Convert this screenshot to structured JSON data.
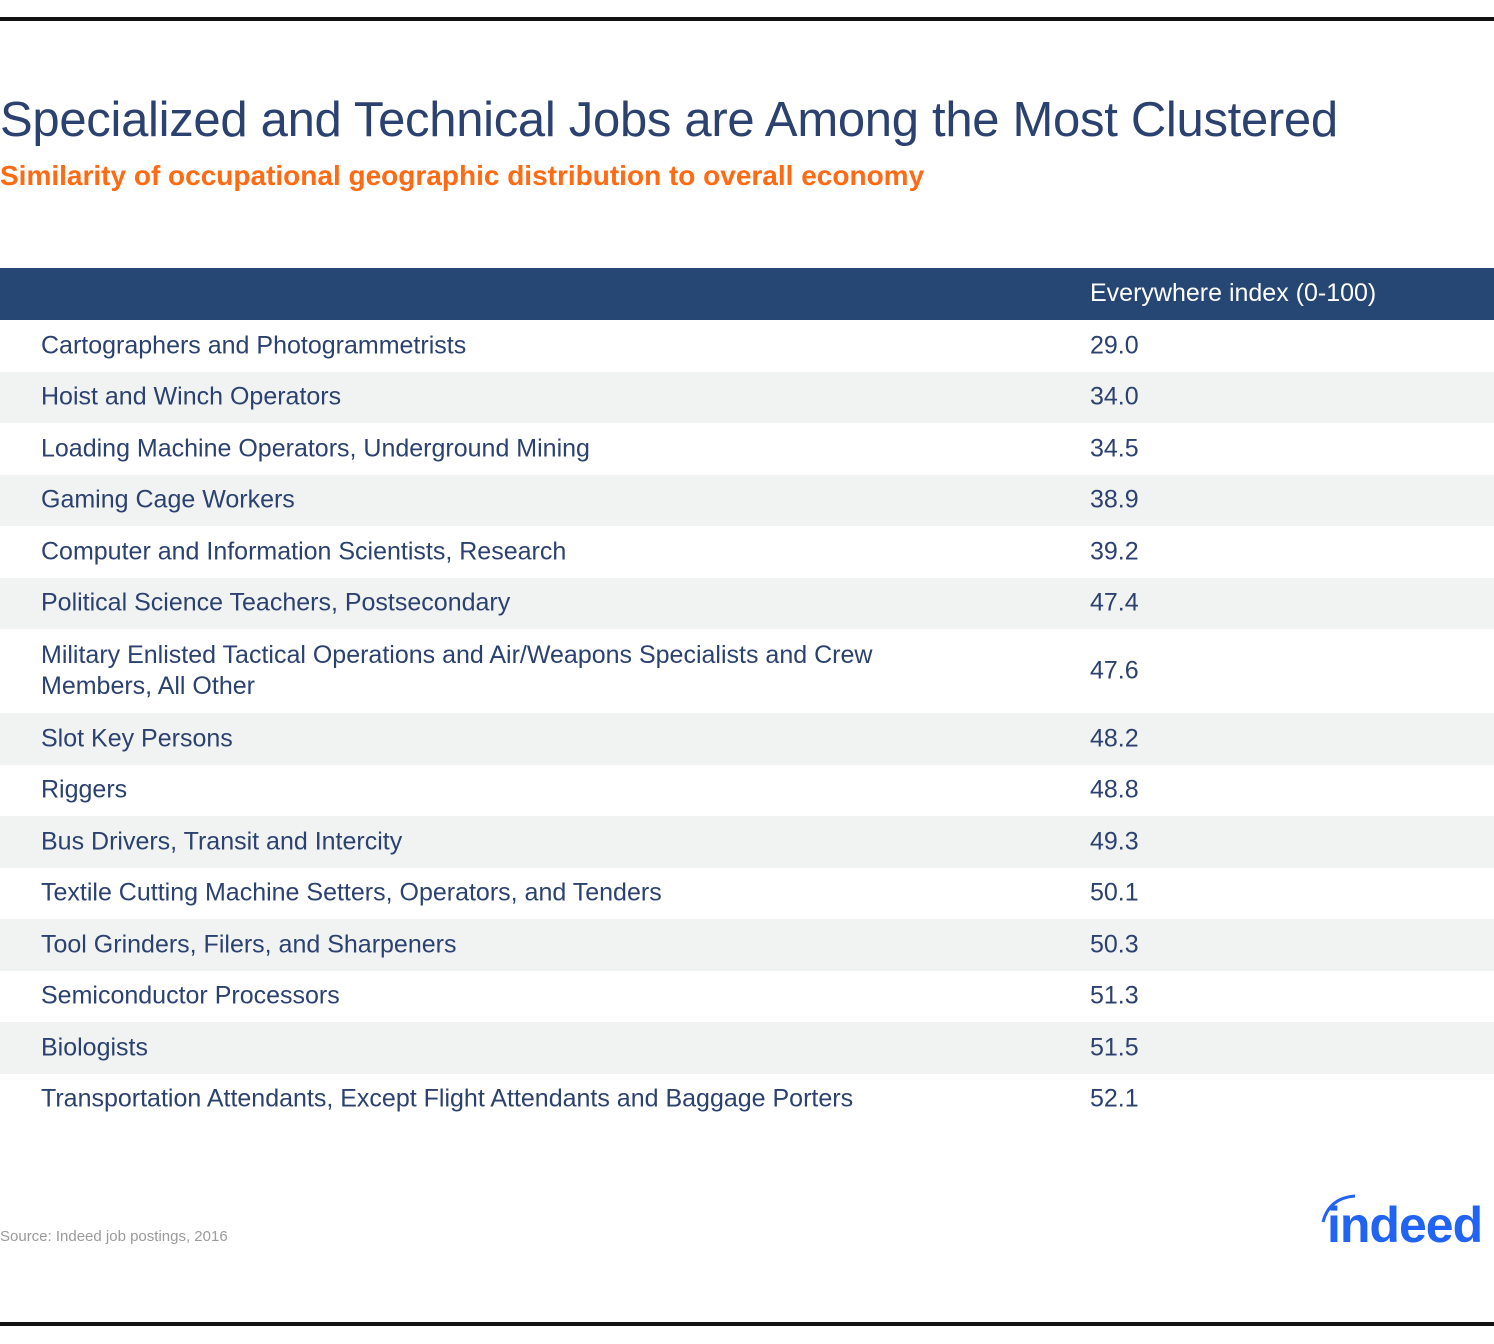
{
  "chart_data": {
    "type": "table",
    "title": "Specialized and Technical Jobs are Among the Most Clustered",
    "subtitle": "Similarity of occupational geographic distribution to overall economy",
    "columns": [
      "",
      "Everywhere index (0-100)"
    ],
    "rows": [
      {
        "occupation": "Cartographers and Photogrammetrists",
        "value": "29.0"
      },
      {
        "occupation": "Hoist and Winch Operators",
        "value": "34.0"
      },
      {
        "occupation": "Loading Machine Operators, Underground Mining",
        "value": "34.5"
      },
      {
        "occupation": "Gaming Cage Workers",
        "value": "38.9"
      },
      {
        "occupation": "Computer and Information Scientists, Research",
        "value": "39.2"
      },
      {
        "occupation": "Political Science Teachers, Postsecondary",
        "value": "47.4"
      },
      {
        "occupation": "Military Enlisted Tactical Operations and Air/Weapons Specialists and Crew Members, All Other",
        "value": "47.6"
      },
      {
        "occupation": "Slot Key Persons",
        "value": "48.2"
      },
      {
        "occupation": "Riggers",
        "value": "48.8"
      },
      {
        "occupation": "Bus Drivers, Transit and Intercity",
        "value": "49.3"
      },
      {
        "occupation": "Textile Cutting Machine Setters, Operators, and Tenders",
        "value": "50.1"
      },
      {
        "occupation": "Tool Grinders, Filers, and Sharpeners",
        "value": "50.3"
      },
      {
        "occupation": "Semiconductor Processors",
        "value": "51.3"
      },
      {
        "occupation": "Biologists",
        "value": "51.5"
      },
      {
        "occupation": "Transportation Attendants, Except Flight Attendants and Baggage Porters",
        "value": "52.1"
      }
    ],
    "source": "Source: Indeed job postings, 2016"
  },
  "logo": {
    "text": "indeed",
    "color": "#2164f3"
  },
  "colors": {
    "header": "#264673",
    "title": "#2b4170",
    "subtitle": "#ff6a13",
    "stripe": "#f1f2f2"
  }
}
